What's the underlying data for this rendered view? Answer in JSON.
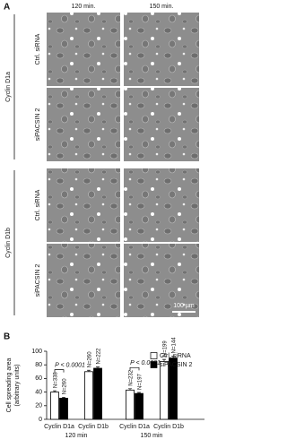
{
  "panel_a": {
    "label": "A",
    "columns": [
      "120 min.",
      "150 min."
    ],
    "cyclins": [
      "Cyclin D1a",
      "Cyclin D1b"
    ],
    "rows": [
      "Ctrl. siRNA",
      "siPACSIN 2",
      "Ctrl. siRNA",
      "siPACSIN 2"
    ],
    "scale_bar": "100 µm"
  },
  "chart_data": {
    "type": "bar",
    "panel_label": "B",
    "y_label": [
      "Cell spreading area",
      "(arbitrary units)"
    ],
    "categories": [
      "Cyclin D1a",
      "Cyclin D1b",
      "Cyclin D1a",
      "Cyclin D1b"
    ],
    "groups": [
      "120 min",
      "150 min"
    ],
    "series": [
      {
        "name": "Ctrl. siRNA",
        "color": "#ffffff",
        "values": [
          40,
          70,
          43,
          85
        ],
        "errors": [
          2,
          2,
          2,
          3
        ],
        "n_labels": [
          "N=338",
          "N=260",
          "N=232",
          "N=199"
        ]
      },
      {
        "name": "siPACSIN 2",
        "color": "#000000",
        "values": [
          31,
          75,
          38,
          90
        ],
        "errors": [
          1.5,
          2,
          1.5,
          3
        ],
        "n_labels": [
          "N=260",
          "N=222",
          "N=197",
          "N=144"
        ]
      }
    ],
    "annotations": [
      "P < 0.0001",
      "P < 0.0001"
    ],
    "ylim": [
      0,
      100
    ],
    "yticks": [
      0,
      20,
      40,
      60,
      80,
      100
    ]
  }
}
